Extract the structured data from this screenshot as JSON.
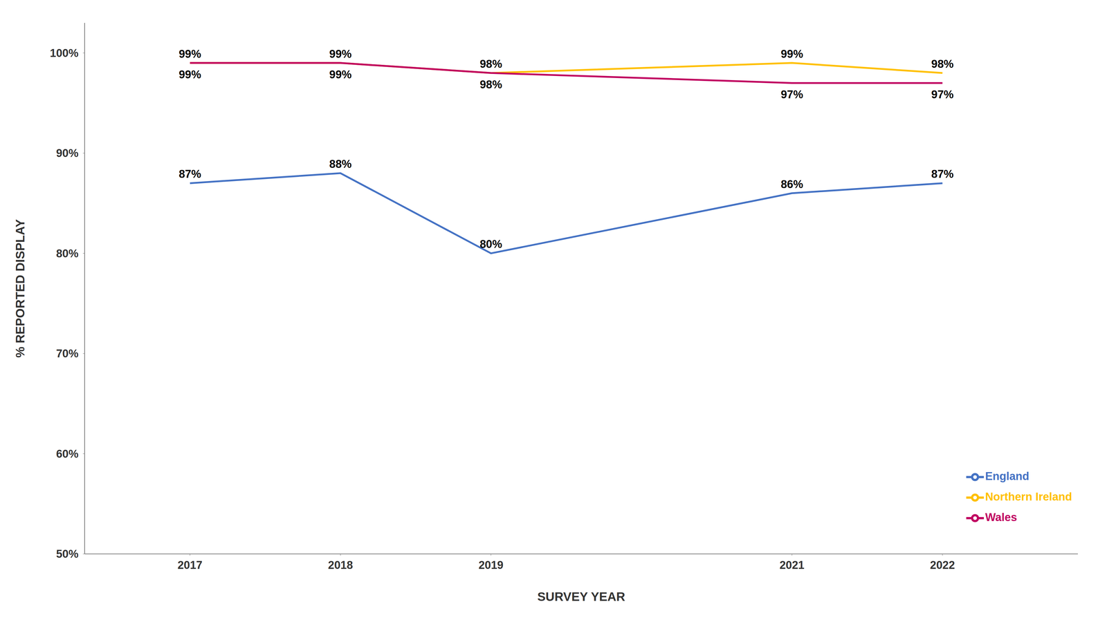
{
  "chart_data": {
    "type": "line",
    "xlabel": "SURVEY YEAR",
    "ylabel": "% REPORTED DISPLAY",
    "x": [
      2017,
      2018,
      2019,
      2021,
      2022
    ],
    "xlim": [
      2016.3,
      2022.9
    ],
    "xticks": [
      2017,
      2018,
      2019,
      2021,
      2022
    ],
    "ylim": [
      50,
      103
    ],
    "yticks": [
      {
        "value": 50,
        "label": "50%"
      },
      {
        "value": 60,
        "label": "60%"
      },
      {
        "value": 70,
        "label": "70%"
      },
      {
        "value": 80,
        "label": "80%"
      },
      {
        "value": 90,
        "label": "90%"
      },
      {
        "value": 100,
        "label": "100%"
      }
    ],
    "grid": false,
    "legend": "lower right",
    "data_labels": true,
    "series": [
      {
        "name": "England",
        "color": "#4472C4",
        "values": [
          87,
          88,
          80,
          86,
          87
        ],
        "value_labels": [
          "87%",
          "88%",
          "80%",
          "86%",
          "87%"
        ]
      },
      {
        "name": "Northern Ireland",
        "color": "#FFC000",
        "values": [
          99,
          99,
          98,
          99,
          98
        ],
        "value_labels": [
          "99%",
          "99%",
          "98%",
          "99%",
          "98%"
        ]
      },
      {
        "name": "Wales",
        "color": "#C00060",
        "values": [
          99,
          99,
          98,
          97,
          97
        ],
        "value_labels": [
          "99%",
          "99%",
          "98%",
          "97%",
          "97%"
        ]
      }
    ]
  }
}
